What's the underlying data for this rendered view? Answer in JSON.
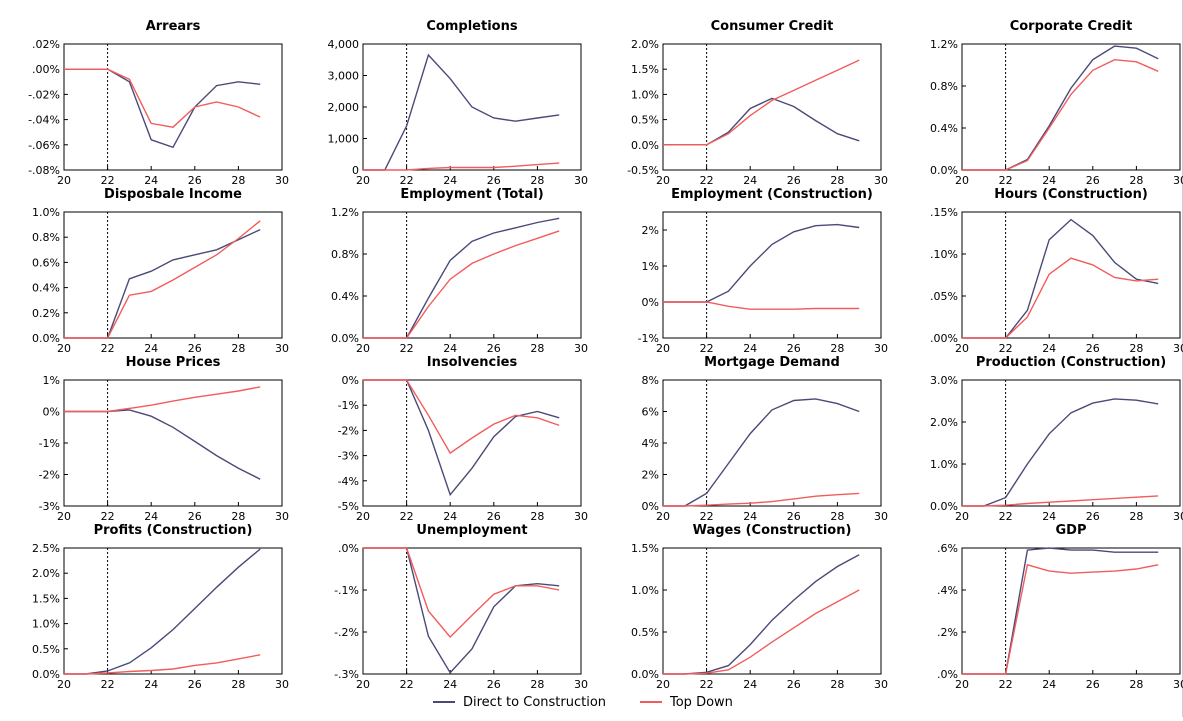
{
  "legend": {
    "items": [
      {
        "label": "Direct to Construction",
        "color": "#4a4a78"
      },
      {
        "label": "Top Down",
        "color": "#f25c5c"
      }
    ]
  },
  "chart_data": [
    {
      "type": "line",
      "title": "Arrears",
      "x": [
        20,
        21,
        22,
        23,
        24,
        25,
        26,
        27,
        28,
        29
      ],
      "xticks": [
        "20",
        "22",
        "24",
        "26",
        "28",
        "30"
      ],
      "xlim": [
        20,
        30
      ],
      "vline": 22,
      "ylim": [
        -0.08,
        0.02
      ],
      "yticks": [
        -0.08,
        -0.06,
        -0.04,
        -0.02,
        0.0,
        0.02
      ],
      "ytick_labels": [
        "-.08%",
        "-.06%",
        "-.04%",
        "-.02%",
        ".00%",
        ".02%"
      ],
      "series": [
        {
          "name": "Direct to Construction",
          "values": [
            0,
            0,
            0,
            -0.01,
            -0.056,
            -0.062,
            -0.03,
            -0.013,
            -0.01,
            -0.012
          ]
        },
        {
          "name": "Top Down",
          "values": [
            0,
            0,
            0,
            -0.008,
            -0.043,
            -0.046,
            -0.03,
            -0.026,
            -0.03,
            -0.038
          ]
        }
      ]
    },
    {
      "type": "line",
      "title": "Completions",
      "x": [
        20,
        21,
        22,
        23,
        24,
        25,
        26,
        27,
        28,
        29
      ],
      "xticks": [
        "20",
        "22",
        "24",
        "26",
        "28",
        "30"
      ],
      "xlim": [
        20,
        30
      ],
      "vline": 22,
      "ylim": [
        0,
        4000
      ],
      "yticks": [
        0,
        1000,
        2000,
        3000,
        4000
      ],
      "ytick_labels": [
        "0",
        "1,000",
        "2,000",
        "3,000",
        "4,000"
      ],
      "series": [
        {
          "name": "Direct to Construction",
          "values": [
            0,
            0,
            1400,
            3650,
            2900,
            2000,
            1650,
            1550,
            1650,
            1750
          ]
        },
        {
          "name": "Top Down",
          "values": [
            0,
            0,
            0,
            50,
            80,
            80,
            80,
            120,
            170,
            220
          ]
        }
      ]
    },
    {
      "type": "line",
      "title": "Consumer Credit",
      "x": [
        20,
        21,
        22,
        23,
        24,
        25,
        26,
        27,
        28,
        29
      ],
      "xticks": [
        "20",
        "22",
        "24",
        "26",
        "28",
        "30"
      ],
      "xlim": [
        20,
        30
      ],
      "vline": 22,
      "ylim": [
        -0.5,
        2.0
      ],
      "yticks": [
        -0.5,
        0.0,
        0.5,
        1.0,
        1.5,
        2.0
      ],
      "ytick_labels": [
        "-0.5%",
        "0.0%",
        "0.5%",
        "1.0%",
        "1.5%",
        "2.0%"
      ],
      "series": [
        {
          "name": "Direct to Construction",
          "values": [
            0,
            0,
            0,
            0.25,
            0.72,
            0.92,
            0.76,
            0.48,
            0.22,
            0.08
          ]
        },
        {
          "name": "Top Down",
          "values": [
            0,
            0,
            0,
            0.22,
            0.58,
            0.88,
            1.08,
            1.28,
            1.48,
            1.68
          ]
        }
      ]
    },
    {
      "type": "line",
      "title": "Corporate Credit",
      "x": [
        20,
        21,
        22,
        23,
        24,
        25,
        26,
        27,
        28,
        29
      ],
      "xticks": [
        "20",
        "22",
        "24",
        "26",
        "28",
        "30"
      ],
      "xlim": [
        20,
        30
      ],
      "vline": 22,
      "ylim": [
        0,
        1.2
      ],
      "yticks": [
        0,
        0.4,
        0.8,
        1.2
      ],
      "ytick_labels": [
        "0.0%",
        "0.4%",
        "0.8%",
        "1.2%"
      ],
      "series": [
        {
          "name": "Direct to Construction",
          "values": [
            0,
            0,
            0,
            0.1,
            0.42,
            0.78,
            1.05,
            1.18,
            1.16,
            1.06
          ]
        },
        {
          "name": "Top Down",
          "values": [
            0,
            0,
            0,
            0.09,
            0.4,
            0.72,
            0.95,
            1.05,
            1.03,
            0.94
          ]
        }
      ]
    },
    {
      "type": "line",
      "title": "Disposbale Income",
      "x": [
        20,
        21,
        22,
        23,
        24,
        25,
        26,
        27,
        28,
        29
      ],
      "xticks": [
        "20",
        "22",
        "24",
        "26",
        "28",
        "30"
      ],
      "xlim": [
        20,
        30
      ],
      "vline": 22,
      "ylim": [
        0,
        1.0
      ],
      "yticks": [
        0,
        0.2,
        0.4,
        0.6,
        0.8,
        1.0
      ],
      "ytick_labels": [
        "0.0%",
        "0.2%",
        "0.4%",
        "0.6%",
        "0.8%",
        "1.0%"
      ],
      "series": [
        {
          "name": "Direct to Construction",
          "values": [
            0,
            0,
            0,
            0.47,
            0.53,
            0.62,
            0.66,
            0.7,
            0.78,
            0.86
          ]
        },
        {
          "name": "Top Down",
          "values": [
            0,
            0,
            0,
            0.34,
            0.37,
            0.46,
            0.56,
            0.66,
            0.79,
            0.93
          ]
        }
      ]
    },
    {
      "type": "line",
      "title": "Employment (Total)",
      "x": [
        20,
        21,
        22,
        23,
        24,
        25,
        26,
        27,
        28,
        29
      ],
      "xticks": [
        "20",
        "22",
        "24",
        "26",
        "28",
        "30"
      ],
      "xlim": [
        20,
        30
      ],
      "vline": 22,
      "ylim": [
        0,
        1.2
      ],
      "yticks": [
        0,
        0.4,
        0.8,
        1.2
      ],
      "ytick_labels": [
        "0.0%",
        "0.4%",
        "0.8%",
        "1.2%"
      ],
      "series": [
        {
          "name": "Direct to Construction",
          "values": [
            0,
            0,
            0,
            0.38,
            0.74,
            0.92,
            1.0,
            1.05,
            1.1,
            1.14
          ]
        },
        {
          "name": "Top Down",
          "values": [
            0,
            0,
            0,
            0.3,
            0.56,
            0.71,
            0.8,
            0.88,
            0.95,
            1.02
          ]
        }
      ]
    },
    {
      "type": "line",
      "title": "Employment (Construction)",
      "x": [
        20,
        21,
        22,
        23,
        24,
        25,
        26,
        27,
        28,
        29
      ],
      "xticks": [
        "20",
        "22",
        "24",
        "26",
        "28",
        "30"
      ],
      "xlim": [
        20,
        30
      ],
      "vline": 22,
      "ylim": [
        -1,
        2.5
      ],
      "yticks": [
        -1,
        0,
        1,
        2
      ],
      "ytick_labels": [
        "-1%",
        "0%",
        "1%",
        "2%"
      ],
      "series": [
        {
          "name": "Direct to Construction",
          "values": [
            0,
            0,
            0,
            0.3,
            1.0,
            1.6,
            1.95,
            2.12,
            2.15,
            2.07
          ]
        },
        {
          "name": "Top Down",
          "values": [
            0,
            0,
            0,
            -0.12,
            -0.2,
            -0.2,
            -0.2,
            -0.18,
            -0.18,
            -0.18
          ]
        }
      ]
    },
    {
      "type": "line",
      "title": "Hours (Construction)",
      "x": [
        20,
        21,
        22,
        23,
        24,
        25,
        26,
        27,
        28,
        29
      ],
      "xticks": [
        "20",
        "22",
        "24",
        "26",
        "28",
        "30"
      ],
      "xlim": [
        20,
        30
      ],
      "vline": 22,
      "ylim": [
        0,
        0.15
      ],
      "yticks": [
        0,
        0.05,
        0.1,
        0.15
      ],
      "ytick_labels": [
        ".00%",
        ".05%",
        ".10%",
        ".15%"
      ],
      "series": [
        {
          "name": "Direct to Construction",
          "values": [
            0,
            0,
            0,
            0.033,
            0.117,
            0.141,
            0.122,
            0.09,
            0.07,
            0.065
          ]
        },
        {
          "name": "Top Down",
          "values": [
            0,
            0,
            0,
            0.025,
            0.076,
            0.095,
            0.087,
            0.072,
            0.068,
            0.07
          ]
        }
      ]
    },
    {
      "type": "line",
      "title": "House Prices",
      "x": [
        20,
        21,
        22,
        23,
        24,
        25,
        26,
        27,
        28,
        29
      ],
      "xticks": [
        "20",
        "22",
        "24",
        "26",
        "28",
        "30"
      ],
      "xlim": [
        20,
        30
      ],
      "vline": 22,
      "ylim": [
        -3,
        1
      ],
      "yticks": [
        -3,
        -2,
        -1,
        0,
        1
      ],
      "ytick_labels": [
        "-3%",
        "-2%",
        "-1%",
        "0%",
        "1%"
      ],
      "series": [
        {
          "name": "Direct to Construction",
          "values": [
            0,
            0,
            0,
            0.05,
            -0.15,
            -0.5,
            -0.95,
            -1.4,
            -1.8,
            -2.15
          ]
        },
        {
          "name": "Top Down",
          "values": [
            0,
            0,
            0,
            0.1,
            0.2,
            0.33,
            0.45,
            0.55,
            0.65,
            0.78
          ]
        }
      ]
    },
    {
      "type": "line",
      "title": "Insolvencies",
      "x": [
        20,
        21,
        22,
        23,
        24,
        25,
        26,
        27,
        28,
        29
      ],
      "xticks": [
        "20",
        "22",
        "24",
        "26",
        "28",
        "30"
      ],
      "xlim": [
        20,
        30
      ],
      "vline": 22,
      "ylim": [
        -5,
        0
      ],
      "yticks": [
        -5,
        -4,
        -3,
        -2,
        -1,
        0
      ],
      "ytick_labels": [
        "-5%",
        "-4%",
        "-3%",
        "-2%",
        "-1%",
        "0%"
      ],
      "series": [
        {
          "name": "Direct to Construction",
          "values": [
            0,
            0,
            0,
            -2.0,
            -4.55,
            -3.5,
            -2.25,
            -1.45,
            -1.25,
            -1.5
          ]
        },
        {
          "name": "Top Down",
          "values": [
            0,
            0,
            0,
            -1.4,
            -2.9,
            -2.3,
            -1.75,
            -1.4,
            -1.5,
            -1.8
          ]
        }
      ]
    },
    {
      "type": "line",
      "title": "Mortgage Demand",
      "x": [
        20,
        21,
        22,
        23,
        24,
        25,
        26,
        27,
        28,
        29
      ],
      "xticks": [
        "20",
        "22",
        "24",
        "26",
        "28",
        "30"
      ],
      "xlim": [
        20,
        30
      ],
      "vline": 22,
      "ylim": [
        0,
        8
      ],
      "yticks": [
        0,
        2,
        4,
        6,
        8
      ],
      "ytick_labels": [
        "0%",
        "2%",
        "4%",
        "6%",
        "8%"
      ],
      "series": [
        {
          "name": "Direct to Construction",
          "values": [
            0,
            0,
            0.8,
            2.7,
            4.6,
            6.1,
            6.7,
            6.8,
            6.5,
            6.0
          ]
        },
        {
          "name": "Top Down",
          "values": [
            0,
            0,
            0.05,
            0.12,
            0.18,
            0.28,
            0.45,
            0.62,
            0.72,
            0.8
          ]
        }
      ]
    },
    {
      "type": "line",
      "title": "Production (Construction)",
      "x": [
        20,
        21,
        22,
        23,
        24,
        25,
        26,
        27,
        28,
        29
      ],
      "xticks": [
        "20",
        "22",
        "24",
        "26",
        "28",
        "30"
      ],
      "xlim": [
        20,
        30
      ],
      "vline": 22,
      "ylim": [
        0,
        3.0
      ],
      "yticks": [
        0,
        1.0,
        2.0,
        3.0
      ],
      "ytick_labels": [
        "0.0%",
        "1.0%",
        "2.0%",
        "3.0%"
      ],
      "series": [
        {
          "name": "Direct to Construction",
          "values": [
            0,
            0,
            0.2,
            1.0,
            1.72,
            2.22,
            2.45,
            2.55,
            2.52,
            2.43
          ]
        },
        {
          "name": "Top Down",
          "values": [
            0,
            0,
            0.02,
            0.06,
            0.09,
            0.12,
            0.15,
            0.18,
            0.21,
            0.24
          ]
        }
      ]
    },
    {
      "type": "line",
      "title": "Profits (Construction)",
      "x": [
        20,
        21,
        22,
        23,
        24,
        25,
        26,
        27,
        28,
        29
      ],
      "xticks": [
        "20",
        "22",
        "24",
        "26",
        "28",
        "30"
      ],
      "xlim": [
        20,
        30
      ],
      "vline": 22,
      "ylim": [
        0,
        2.5
      ],
      "yticks": [
        0,
        0.5,
        1.0,
        1.5,
        2.0,
        2.5
      ],
      "ytick_labels": [
        "0.0%",
        "0.5%",
        "1.0%",
        "1.5%",
        "2.0%",
        "2.5%"
      ],
      "series": [
        {
          "name": "Direct to Construction",
          "values": [
            0,
            0,
            0.06,
            0.22,
            0.52,
            0.88,
            1.3,
            1.72,
            2.12,
            2.48
          ]
        },
        {
          "name": "Top Down",
          "values": [
            0,
            0,
            0.02,
            0.05,
            0.07,
            0.1,
            0.17,
            0.22,
            0.3,
            0.38
          ]
        }
      ]
    },
    {
      "type": "line",
      "title": "Unemployment",
      "x": [
        20,
        21,
        22,
        23,
        24,
        25,
        26,
        27,
        28,
        29
      ],
      "xticks": [
        "20",
        "22",
        "24",
        "26",
        "28",
        "30"
      ],
      "xlim": [
        20,
        30
      ],
      "vline": 22,
      "ylim": [
        -0.3,
        0.0
      ],
      "yticks": [
        -0.3,
        -0.2,
        -0.1,
        0.0
      ],
      "ytick_labels": [
        "-.3%",
        "-.2%",
        "-.1%",
        ".0%"
      ],
      "series": [
        {
          "name": "Direct to Construction",
          "values": [
            0,
            0,
            0,
            -0.21,
            -0.297,
            -0.24,
            -0.14,
            -0.09,
            -0.085,
            -0.09
          ]
        },
        {
          "name": "Top Down",
          "values": [
            0,
            0,
            0,
            -0.15,
            -0.212,
            -0.16,
            -0.11,
            -0.09,
            -0.09,
            -0.1
          ]
        }
      ]
    },
    {
      "type": "line",
      "title": "Wages (Construction)",
      "x": [
        20,
        21,
        22,
        23,
        24,
        25,
        26,
        27,
        28,
        29
      ],
      "xticks": [
        "20",
        "22",
        "24",
        "26",
        "28",
        "30"
      ],
      "xlim": [
        20,
        30
      ],
      "vline": 22,
      "ylim": [
        0,
        1.5
      ],
      "yticks": [
        0,
        0.5,
        1.0,
        1.5
      ],
      "ytick_labels": [
        "0.0%",
        "0.5%",
        "1.0%",
        "1.5%"
      ],
      "series": [
        {
          "name": "Direct to Construction",
          "values": [
            0,
            0,
            0.02,
            0.1,
            0.35,
            0.64,
            0.88,
            1.1,
            1.28,
            1.42
          ]
        },
        {
          "name": "Top Down",
          "values": [
            0,
            0,
            0.01,
            0.05,
            0.2,
            0.38,
            0.55,
            0.72,
            0.86,
            1.0
          ]
        }
      ]
    },
    {
      "type": "line",
      "title": "GDP",
      "x": [
        20,
        21,
        22,
        23,
        24,
        25,
        26,
        27,
        28,
        29
      ],
      "xticks": [
        "20",
        "22",
        "24",
        "26",
        "28",
        "30"
      ],
      "xlim": [
        20,
        30
      ],
      "vline": 22,
      "ylim": [
        0,
        0.6
      ],
      "yticks": [
        0,
        0.2,
        0.4,
        0.6
      ],
      "ytick_labels": [
        ".0%",
        ".2%",
        ".4%",
        ".6%"
      ],
      "series": [
        {
          "name": "Direct to Construction",
          "values": [
            0,
            0,
            0,
            0.59,
            0.6,
            0.59,
            0.59,
            0.58,
            0.58,
            0.58
          ]
        },
        {
          "name": "Top Down",
          "values": [
            0,
            0,
            0,
            0.52,
            0.49,
            0.48,
            0.485,
            0.49,
            0.5,
            0.52
          ]
        }
      ]
    }
  ]
}
